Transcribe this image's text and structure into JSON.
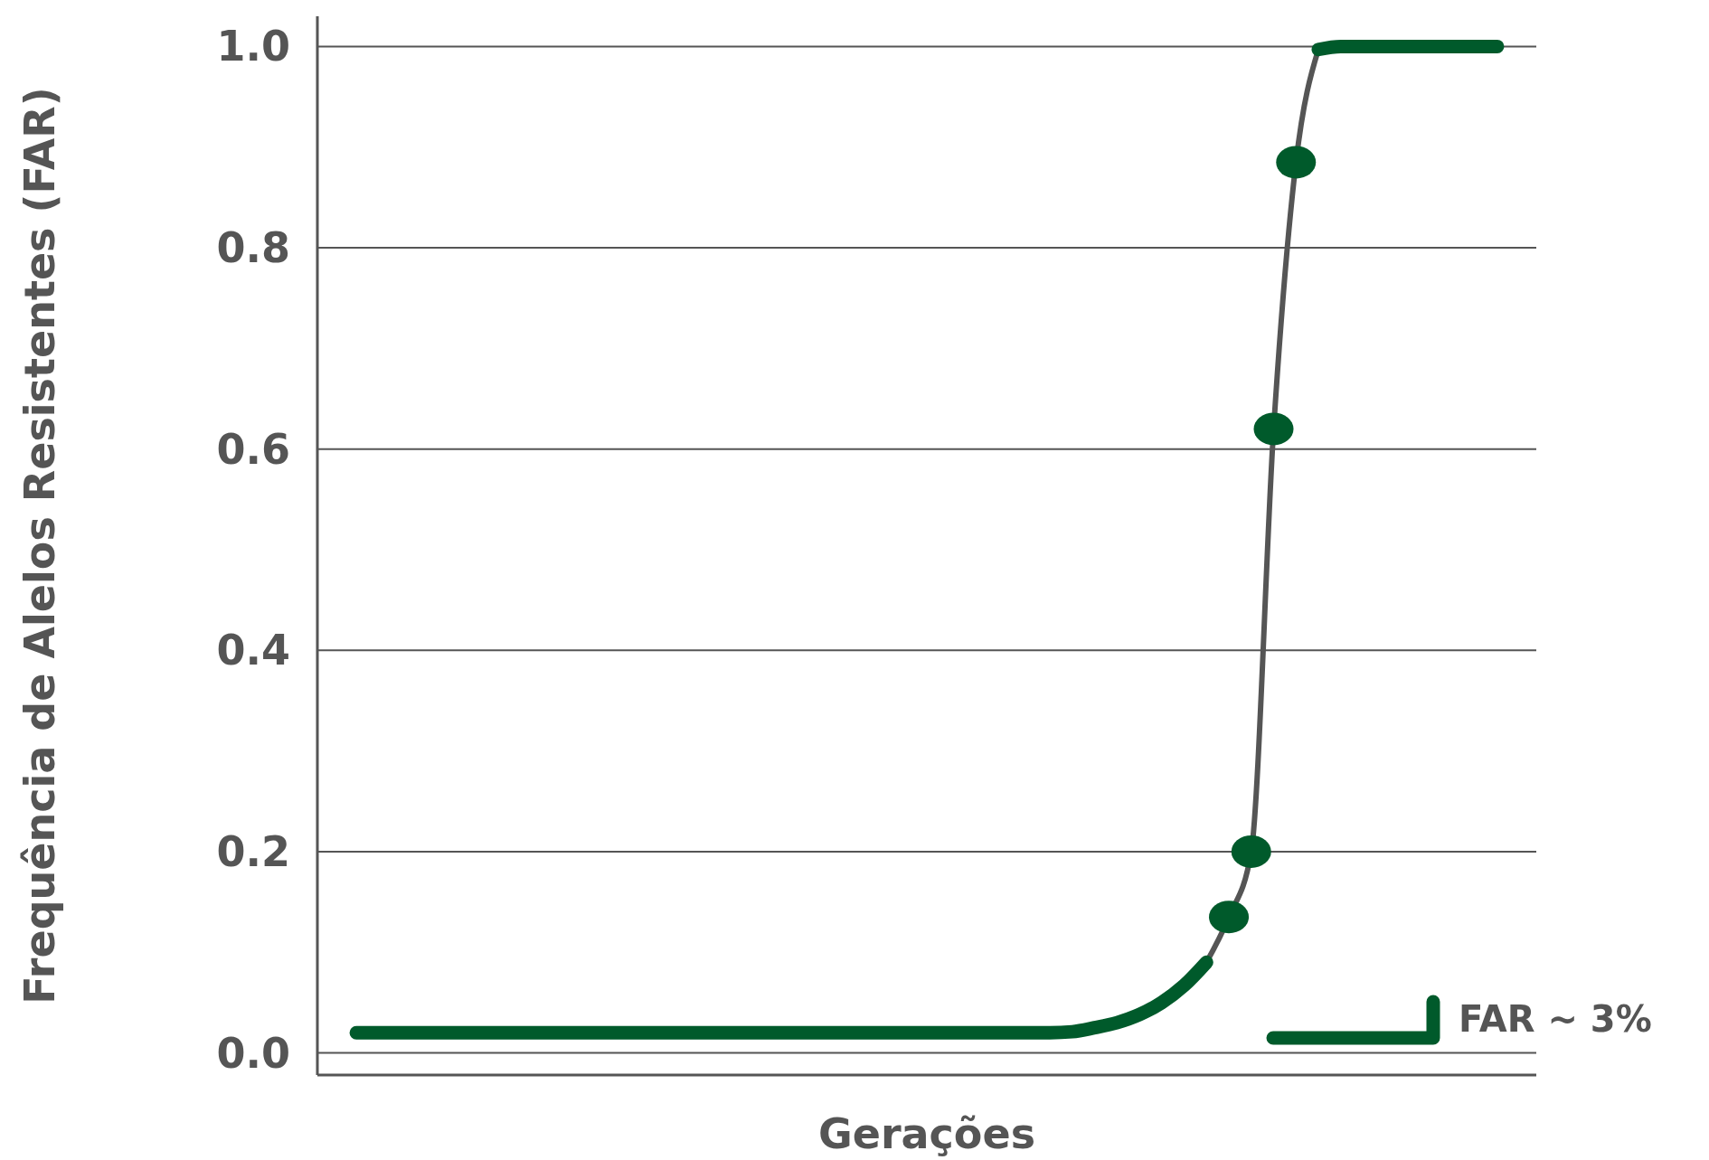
{
  "chart_data": {
    "type": "line",
    "xlabel": "Gerações",
    "ylabel": "Frequência de Alelos Resistentes (FAR)",
    "categories": [
      null,
      null,
      null,
      null,
      null,
      null,
      null,
      null,
      null,
      null,
      null,
      null,
      null,
      null,
      null,
      null,
      null,
      null,
      null,
      null,
      null,
      null,
      null,
      null,
      null,
      null,
      null,
      null,
      null,
      null,
      null,
      null,
      null,
      null,
      null,
      null,
      null,
      null,
      null,
      null,
      null,
      null,
      null,
      null,
      null,
      null,
      null,
      null,
      null,
      null,
      null,
      null
    ],
    "series": [
      {
        "color": "#555555",
        "values": [
          null,
          null,
          null,
          null,
          null,
          null,
          null,
          null,
          null,
          null,
          null,
          null,
          null,
          null,
          null,
          null,
          null,
          null,
          null,
          null,
          null,
          null,
          null,
          null,
          null,
          null,
          null,
          null,
          null,
          null,
          null,
          null,
          null,
          null,
          null,
          null,
          null,
          null,
          0.09,
          0.135,
          0.2,
          0.62,
          0.885,
          0.997,
          null,
          null,
          null,
          null,
          null,
          null,
          null,
          null
        ]
      },
      {
        "name": "FAR ~ 3%",
        "color": "#005a2b",
        "values": [
          0.02,
          0.02,
          0.02,
          0.02,
          0.02,
          0.02,
          0.02,
          0.02,
          0.02,
          0.02,
          0.02,
          0.02,
          0.02,
          0.02,
          0.02,
          0.02,
          0.02,
          0.02,
          0.02,
          0.02,
          0.02,
          0.02,
          0.02,
          0.02,
          0.02,
          0.02,
          0.02,
          0.02,
          0.02,
          0.02,
          0.02,
          0.02,
          0.021,
          0.025,
          0.03,
          0.038,
          0.05,
          0.067,
          0.09,
          null,
          null,
          null,
          null,
          null,
          null,
          null,
          null,
          null,
          null,
          null,
          null,
          null
        ]
      },
      {
        "color": "#005a2b",
        "values": [
          null,
          null,
          null,
          null,
          null,
          null,
          null,
          null,
          null,
          null,
          null,
          null,
          null,
          null,
          null,
          null,
          null,
          null,
          null,
          null,
          null,
          null,
          null,
          null,
          null,
          null,
          null,
          null,
          null,
          null,
          null,
          null,
          null,
          null,
          null,
          null,
          null,
          null,
          null,
          null,
          null,
          null,
          null,
          0.997,
          1.0,
          1.0,
          1.0,
          1.0,
          1.0,
          1.0,
          1.0,
          1.0
        ]
      },
      {
        "type": "scatter",
        "color": "#005a2b",
        "values": [
          null,
          null,
          null,
          null,
          null,
          null,
          null,
          null,
          null,
          null,
          null,
          null,
          null,
          null,
          null,
          null,
          null,
          null,
          null,
          null,
          null,
          null,
          null,
          null,
          null,
          null,
          null,
          null,
          null,
          null,
          null,
          null,
          null,
          null,
          null,
          null,
          null,
          null,
          null,
          0.135,
          0.2,
          0.62,
          0.885,
          null,
          null,
          null,
          null,
          null,
          null,
          null,
          null,
          null
        ]
      }
    ],
    "ylim": [
      -0.022,
      1.03
    ],
    "yticks": [
      {
        "value": 0,
        "label": "0.0"
      },
      {
        "value": 0.2,
        "label": "0.2"
      },
      {
        "value": 0.4,
        "label": "0.4"
      },
      {
        "value": 0.6,
        "label": "0.6"
      },
      {
        "value": 0.8,
        "label": "0.8"
      },
      {
        "value": 1,
        "label": "1.0"
      }
    ],
    "grid": "y",
    "legend": "bottom right",
    "tick_labels": "y"
  }
}
